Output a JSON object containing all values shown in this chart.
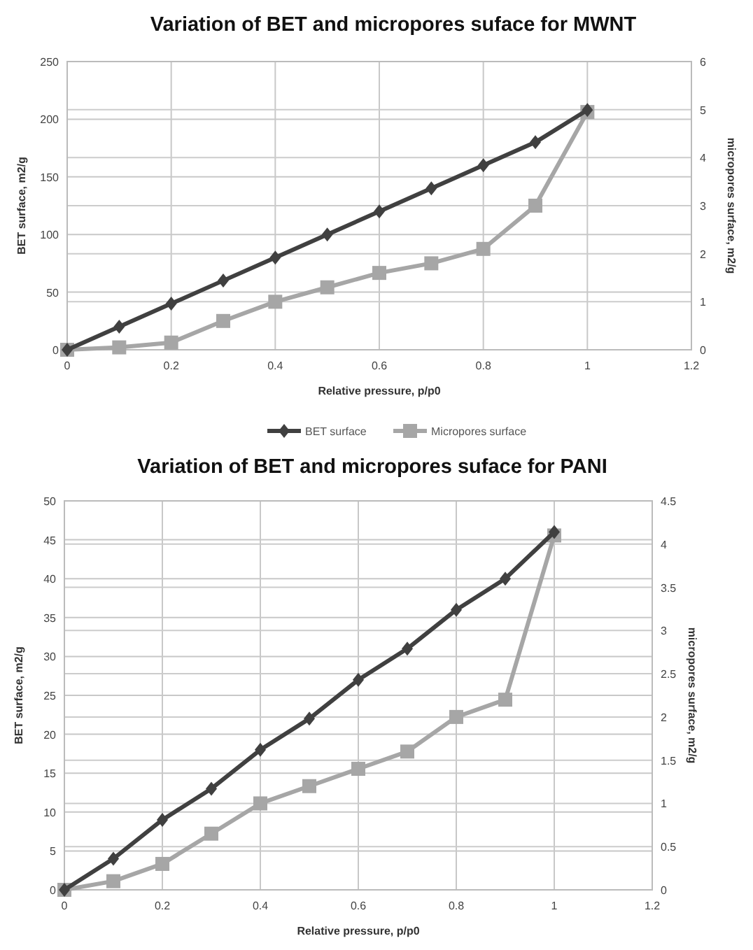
{
  "chart_data": [
    {
      "type": "line",
      "title": "Variation of BET and micropores suface  for MWNT",
      "xlabel": "Relative pressure, p/p0",
      "ylabel": "BET surface, m2/g",
      "y2label": "micropores surface, m2/g",
      "x": [
        0,
        0.1,
        0.2,
        0.3,
        0.4,
        0.5,
        0.6,
        0.7,
        0.8,
        0.9,
        1
      ],
      "xlim": [
        0,
        1.2
      ],
      "xticks": [
        0,
        0.2,
        0.4,
        0.6,
        0.8,
        1,
        1.2
      ],
      "ylim": [
        0,
        250
      ],
      "yticks": [
        0,
        50,
        100,
        150,
        200,
        250
      ],
      "y2lim": [
        0,
        6
      ],
      "y2ticks": [
        0,
        1,
        2,
        3,
        4,
        5,
        6
      ],
      "grid": true,
      "legend": "bottom",
      "line_style": "solid",
      "series": [
        {
          "name": "BET surface",
          "color": "#404040",
          "marker": "diamond",
          "values": [
            0,
            20,
            40,
            60,
            80,
            100,
            120,
            140,
            160,
            180,
            208
          ]
        },
        {
          "name": "Micropores surface",
          "color": "#a6a6a6",
          "marker": "square",
          "axis": "y2",
          "values": [
            0,
            0.05,
            0.15,
            0.6,
            1.0,
            1.3,
            1.6,
            1.8,
            2.1,
            3.0,
            4.95
          ]
        }
      ]
    },
    {
      "type": "line",
      "title": "Variation of BET and micropores suface  for PANI",
      "xlabel": "Relative pressure, p/p0",
      "ylabel": "BET surface, m2/g",
      "y2label": "micropores surface, m2/g",
      "x": [
        0,
        0.1,
        0.2,
        0.3,
        0.4,
        0.5,
        0.6,
        0.7,
        0.8,
        0.9,
        1
      ],
      "xlim": [
        0,
        1.2
      ],
      "xticks": [
        0,
        0.2,
        0.4,
        0.6,
        0.8,
        1,
        1.2
      ],
      "ylim": [
        0,
        50
      ],
      "yticks": [
        0,
        5,
        10,
        15,
        20,
        25,
        30,
        35,
        40,
        45,
        50
      ],
      "y2lim": [
        0,
        4.5
      ],
      "y2ticks": [
        0,
        0.5,
        1,
        1.5,
        2,
        2.5,
        3,
        3.5,
        4,
        4.5
      ],
      "grid": true,
      "line_style": "solid",
      "series": [
        {
          "color": "#404040",
          "marker": "diamond",
          "values": [
            0,
            4,
            9,
            13,
            18,
            22,
            27,
            31,
            36,
            40,
            46
          ]
        },
        {
          "color": "#a6a6a6",
          "marker": "square",
          "axis": "y2",
          "values": [
            0,
            0.1,
            0.3,
            0.65,
            1.0,
            1.2,
            1.4,
            1.6,
            2.0,
            2.2,
            4.1
          ]
        }
      ]
    }
  ]
}
